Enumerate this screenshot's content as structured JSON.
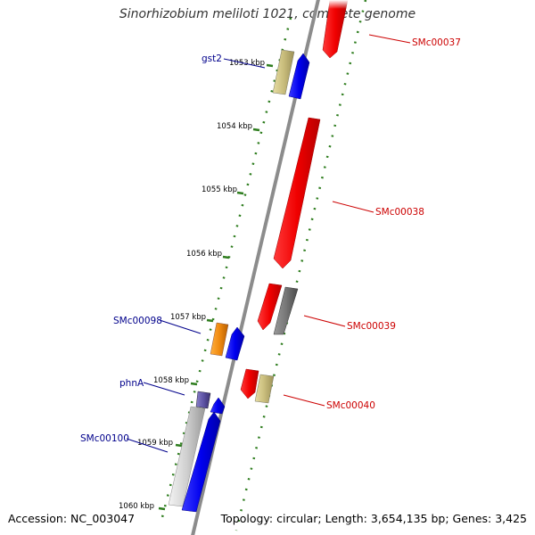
{
  "title": "Sinorhizobium meliloti 1021, complete genome",
  "footer": {
    "accession": "Accession: NC_003047",
    "summary": "Topology: circular; Length: 3,654,135 bp; Genes: 3,425"
  },
  "colors": {
    "backbone": "#8c8c8c",
    "ticks": "#2e7d1e",
    "forward_label": "#00008b",
    "reverse_label": "#cc0000"
  },
  "tick_labels": [
    {
      "label": "1053 kbp",
      "kbp": 1053
    },
    {
      "label": "1054 kbp",
      "kbp": 1054
    },
    {
      "label": "1055 kbp",
      "kbp": 1055
    },
    {
      "label": "1056 kbp",
      "kbp": 1056
    },
    {
      "label": "1057 kbp",
      "kbp": 1057
    },
    {
      "label": "1058 kbp",
      "kbp": 1058
    },
    {
      "label": "1059 kbp",
      "kbp": 1059
    },
    {
      "label": "1060 kbp",
      "kbp": 1060
    }
  ],
  "gene_labels": [
    {
      "name": "gst2",
      "strand": "forward"
    },
    {
      "name": "SMc00098",
      "strand": "forward"
    },
    {
      "name": "phnA",
      "strand": "forward"
    },
    {
      "name": "SMc00100",
      "strand": "forward"
    },
    {
      "name": "SMc00037",
      "strand": "reverse"
    },
    {
      "name": "SMc00038",
      "strand": "reverse"
    },
    {
      "name": "SMc00039",
      "strand": "reverse"
    },
    {
      "name": "SMc00040",
      "strand": "reverse"
    }
  ]
}
